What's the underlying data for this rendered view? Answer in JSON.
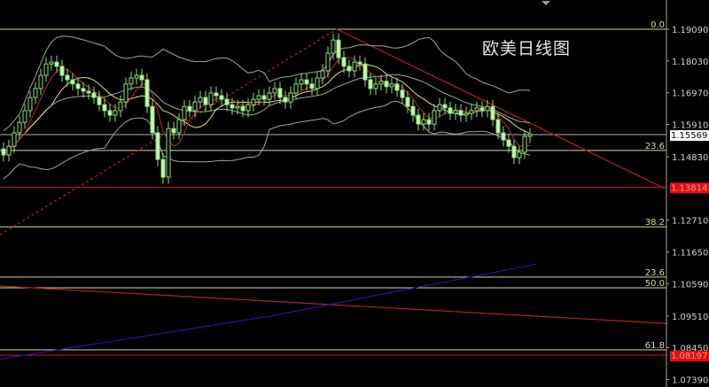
{
  "chart_data": {
    "type": "candlestick",
    "title": "欧美日线图",
    "ylim": [
      1.07,
      1.195
    ],
    "y_ticks": [
      "1.19090",
      "1.18030",
      "1.16970",
      "1.15910",
      "1.14830",
      "1.12710",
      "1.11650",
      "1.10590",
      "1.09510",
      "1.08450",
      "1.07390"
    ],
    "current_price": {
      "value": 1.15569,
      "label": "1.15569"
    },
    "closes": [
      1.1489,
      1.1518,
      1.1563,
      1.1598,
      1.1637,
      1.1681,
      1.1711,
      1.1755,
      1.1793,
      1.1799,
      1.1785,
      1.1755,
      1.174,
      1.1726,
      1.1711,
      1.1702,
      1.1696,
      1.1681,
      1.1657,
      1.1637,
      1.1622,
      1.1637,
      1.1666,
      1.1726,
      1.1746,
      1.1755,
      1.174,
      1.1651,
      1.1563,
      1.1474,
      1.1415,
      1.1577,
      1.1563,
      1.1607,
      1.1651,
      1.1637,
      1.1666,
      1.1681,
      1.1657,
      1.1696,
      1.1687,
      1.1675,
      1.1657,
      1.1646,
      1.1651,
      1.1637,
      1.1657,
      1.1675,
      1.1687,
      1.1675,
      1.1696,
      1.1711,
      1.1681,
      1.1666,
      1.1696,
      1.1726,
      1.174,
      1.1726,
      1.1711,
      1.1746,
      1.177,
      1.1829,
      1.1873,
      1.1814,
      1.1785,
      1.177,
      1.1799,
      1.1793,
      1.174,
      1.1711,
      1.1726,
      1.1735,
      1.1717,
      1.1726,
      1.1705,
      1.1681,
      1.1651,
      1.1622,
      1.1592,
      1.1607,
      1.1592,
      1.1637,
      1.1657,
      1.1646,
      1.1628,
      1.1637,
      1.1622,
      1.1628,
      1.1637,
      1.1646,
      1.1637,
      1.1651,
      1.1607,
      1.1563,
      1.1539,
      1.1518,
      1.148,
      1.1498,
      1.1551,
      1.1557
    ],
    "long_ma": [
      {
        "i": 0,
        "price": 1.0809
      },
      {
        "i": 50,
        "price": 1.095
      },
      {
        "i": 99,
        "price": 1.112
      },
      {
        "i": 133,
        "price": 1.1255
      }
    ],
    "fibonacci_levels": [
      {
        "label": "0.0",
        "price": 1.1909
      },
      {
        "label": "23.6",
        "price": 1.1504
      },
      {
        "label": "38.2",
        "price": 1.1249
      },
      {
        "label": "23.6",
        "price": 1.1081
      },
      {
        "label": "50.0",
        "price": 1.1045
      },
      {
        "label": "61.8",
        "price": 1.0838
      }
    ],
    "price_lines": [
      {
        "label": "1.13814",
        "price": 1.13814,
        "color": "#e01010"
      },
      {
        "label": "1.08197",
        "price": 1.08197,
        "color": "#e01010"
      }
    ],
    "trendlines": [
      {
        "style": "solid",
        "from": {
          "i": 62.7,
          "price": 1.1909
        },
        "to": {
          "i": 124.3,
          "price": 1.1377
        },
        "color": "#b22222"
      },
      {
        "style": "dotted",
        "from": {
          "i": -0.7,
          "price": 1.1222
        },
        "to": {
          "i": 62.7,
          "price": 1.1909
        },
        "color": "#b22222"
      },
      {
        "style": "solid",
        "from": {
          "i": -0.7,
          "price": 1.1051
        },
        "to": {
          "i": 132.7,
          "price": 1.0918
        },
        "color": "#b22222"
      }
    ],
    "colors": {
      "candle": "#8ee07a",
      "candle_fill": "#c8f5b0",
      "bands": "#9aa89a",
      "ma_fast": "#c0281e",
      "ma_slow": "#e8d88a",
      "long_ma": "#1a1aa8",
      "fib": "#d8d8a0",
      "axis": "#a0a0a0"
    }
  }
}
